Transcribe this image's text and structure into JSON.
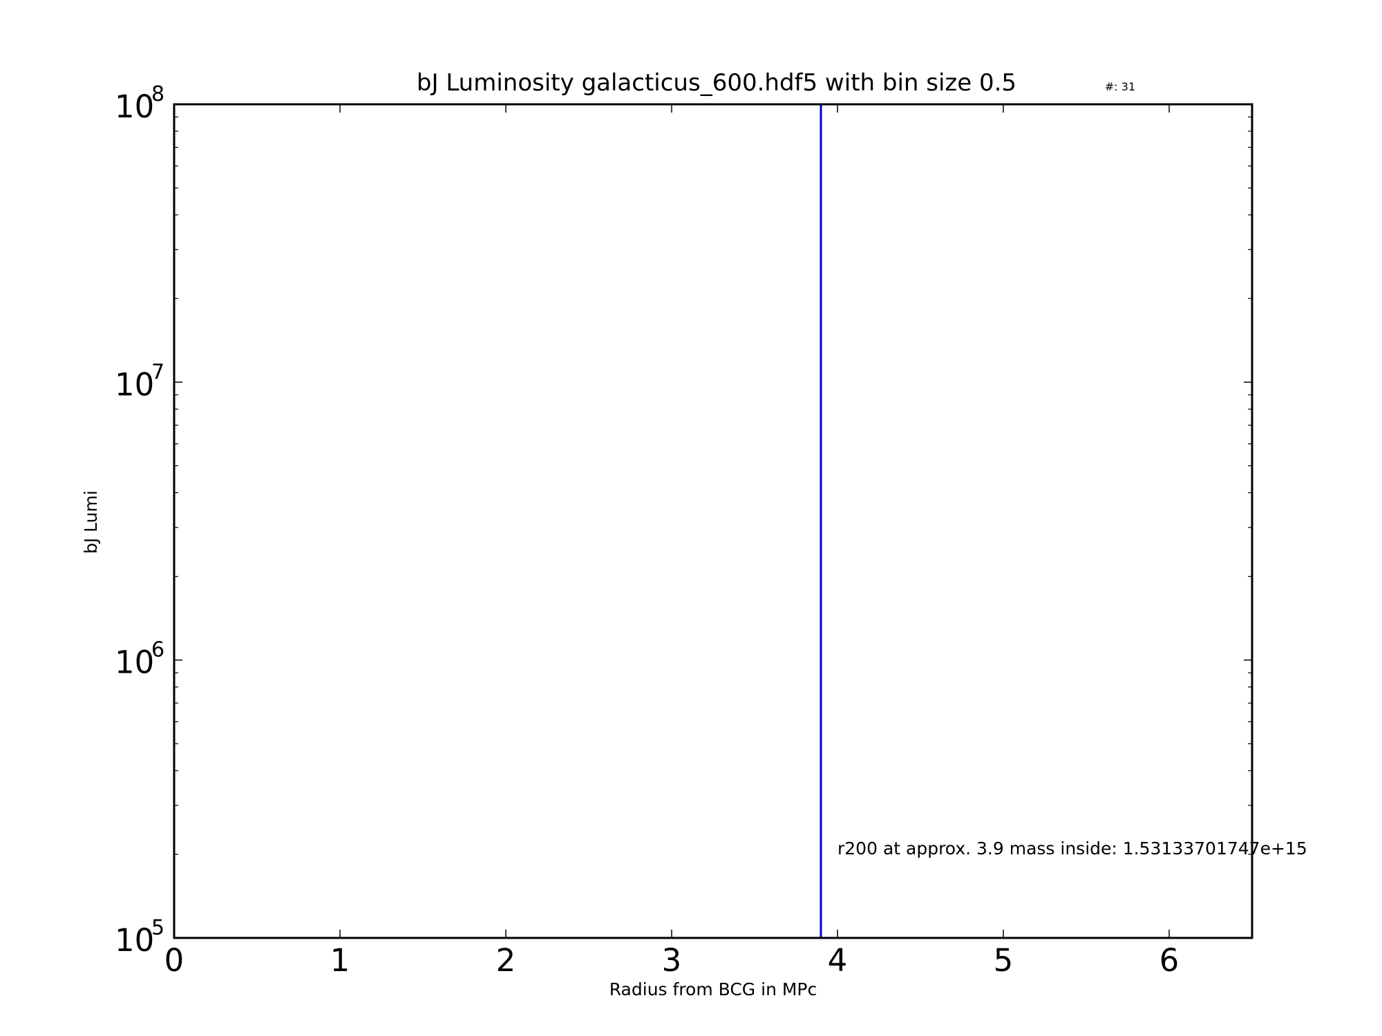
{
  "chart_data": {
    "type": "line",
    "title": "bJ Luminosity galacticus_600.hdf5 with bin size 0.5",
    "count_label": "#: 31",
    "xlabel": "Radius from BCG in MPc",
    "ylabel": "bJ Lumi",
    "xlim": [
      0,
      6.5
    ],
    "ylim": [
      100000,
      100000000
    ],
    "yscale": "log",
    "x_ticks": [
      0,
      1,
      2,
      3,
      4,
      5,
      6
    ],
    "x_tick_labels": [
      "0",
      "1",
      "2",
      "3",
      "4",
      "5",
      "6"
    ],
    "y_ticks": [
      100000,
      1000000,
      10000000,
      100000000
    ],
    "y_tick_base": "10",
    "y_tick_exponents": [
      "5",
      "6",
      "7",
      "8"
    ],
    "grid": false,
    "series": [
      {
        "x": [
          3.9,
          3.9
        ],
        "y": [
          100000,
          100000000
        ],
        "color": "#0000cc"
      }
    ],
    "annotation": {
      "text": "r200 at approx. 3.9 mass inside: 1.53133701747e+15",
      "x": 4.0,
      "y": 200000
    }
  }
}
